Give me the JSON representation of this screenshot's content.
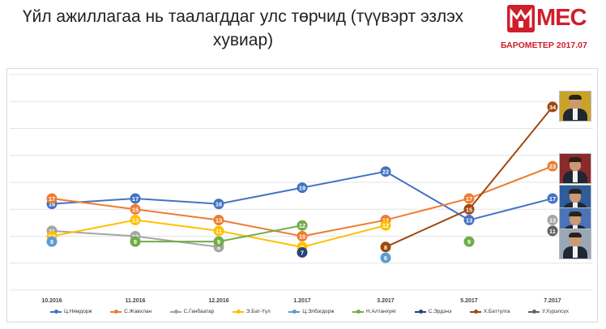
{
  "title": "Үйл ажиллагаа нь таалагддаг улс төрчид (түүвэрт эзлэх хувиар)",
  "logo": {
    "text": "MEC",
    "subtitle": "БАРОМЕТЕР 2017.07",
    "color": "#d01e2b"
  },
  "chart_data": {
    "type": "line",
    "categories": [
      "10.2016",
      "11.2016",
      "12.2016",
      "1.2017",
      "3.2017",
      "5.2017",
      "7.2017"
    ],
    "ylim": [
      0,
      40
    ],
    "grid": true,
    "legend": "bottom",
    "series": [
      {
        "name": "Ц.Нямдорж",
        "color": "#4472c4",
        "values": [
          16,
          17,
          16,
          19,
          22,
          13,
          17
        ]
      },
      {
        "name": "С.Жавхлан",
        "color": "#ed7d31",
        "values": [
          17,
          15,
          13,
          10,
          13,
          17,
          23
        ]
      },
      {
        "name": "С.Ганбаатар",
        "color": "#a5a5a5",
        "values": [
          11,
          10,
          8,
          null,
          null,
          null,
          13
        ]
      },
      {
        "name": "Э.Бат-Үүл",
        "color": "#ffc000",
        "values": [
          10,
          13,
          11,
          8,
          12,
          null,
          null
        ]
      },
      {
        "name": "Ц.Элбэгдорж",
        "color": "#5b9bd5",
        "values": [
          9,
          null,
          null,
          null,
          6,
          null,
          null
        ]
      },
      {
        "name": "Н.Алтанхуяг",
        "color": "#70ad47",
        "values": [
          null,
          9,
          9,
          12,
          null,
          9,
          null
        ]
      },
      {
        "name": "С.Эрдэнэ",
        "color": "#264478",
        "values": [
          null,
          null,
          null,
          7,
          null,
          null,
          null
        ]
      },
      {
        "name": "Х.Баттулга",
        "color": "#9e480e",
        "values": [
          null,
          null,
          null,
          null,
          8,
          15,
          34
        ]
      },
      {
        "name": "У.Хүрэлсүх",
        "color": "#636363",
        "values": [
          null,
          null,
          null,
          null,
          null,
          null,
          11
        ]
      }
    ]
  },
  "photos": [
    {
      "name": "Х.Баттулга",
      "bg": "#c9a227"
    },
    {
      "name": "С.Жавхлан",
      "bg": "#8a2a2a"
    },
    {
      "name": "Ц.Нямдорж",
      "bg": "#2f5c9a"
    },
    {
      "name": "С.Ганбаатар",
      "bg": "#4b74b8"
    },
    {
      "name": "У.Хүрэлсүх",
      "bg": "#9aa7b6"
    }
  ]
}
